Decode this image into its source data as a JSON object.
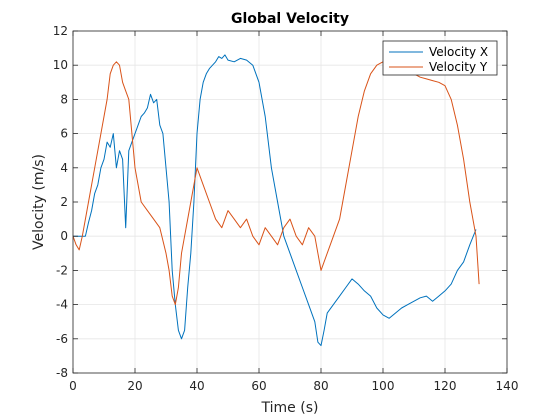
{
  "chart_data": {
    "type": "line",
    "title": "Global Velocity",
    "xlabel": "Time (s)",
    "ylabel": "Velocity (m/s)",
    "xlim": [
      0,
      140
    ],
    "ylim": [
      -8,
      12
    ],
    "xticks": [
      0,
      20,
      40,
      60,
      80,
      100,
      120,
      140
    ],
    "yticks": [
      -8,
      -6,
      -4,
      -2,
      0,
      2,
      4,
      6,
      8,
      10,
      12
    ],
    "grid": true,
    "legend_position": "top-right",
    "series": [
      {
        "name": "Velocity X",
        "color": "#0072BD",
        "x": [
          0,
          2,
          4,
          5,
          6,
          7,
          8,
          9,
          10,
          11,
          12,
          13,
          14,
          15,
          16,
          17,
          18,
          19,
          20,
          21,
          22,
          23,
          24,
          25,
          26,
          27,
          28,
          29,
          30,
          31,
          32,
          33,
          34,
          35,
          36,
          37,
          38,
          39,
          40,
          41,
          42,
          43,
          44,
          45,
          46,
          47,
          48,
          49,
          50,
          52,
          54,
          56,
          58,
          60,
          62,
          64,
          66,
          68,
          70,
          72,
          74,
          76,
          78,
          79,
          80,
          81,
          82,
          84,
          86,
          88,
          90,
          92,
          94,
          96,
          98,
          100,
          102,
          104,
          106,
          108,
          110,
          112,
          114,
          116,
          118,
          120,
          122,
          124,
          126,
          128,
          130
        ],
        "y": [
          0,
          0,
          0,
          0.8,
          1.5,
          2.5,
          3,
          4,
          4.5,
          5.5,
          5.2,
          6,
          4,
          5,
          4.5,
          0.5,
          5,
          5.5,
          6,
          6.5,
          7,
          7.2,
          7.5,
          8.3,
          7.8,
          8,
          6.5,
          6,
          4,
          2,
          -2,
          -4,
          -5.5,
          -6,
          -5.5,
          -3,
          -1,
          2,
          6,
          8,
          9,
          9.5,
          9.8,
          10,
          10.2,
          10.5,
          10.4,
          10.6,
          10.3,
          10.2,
          10.4,
          10.3,
          10,
          9,
          7,
          4,
          2,
          0,
          -1,
          -2,
          -3,
          -4,
          -5,
          -6.2,
          -6.4,
          -5.5,
          -4.5,
          -4,
          -3.5,
          -3,
          -2.5,
          -2.8,
          -3.2,
          -3.5,
          -4.2,
          -4.6,
          -4.8,
          -4.5,
          -4.2,
          -4,
          -3.8,
          -3.6,
          -3.5,
          -3.8,
          -3.5,
          -3.2,
          -2.8,
          -2,
          -1.5,
          -0.5,
          0.4
        ]
      },
      {
        "name": "Velocity Y",
        "color": "#D95319",
        "x": [
          0,
          1,
          2,
          3,
          4,
          5,
          6,
          7,
          8,
          9,
          10,
          11,
          12,
          13,
          14,
          15,
          16,
          17,
          18,
          19,
          20,
          21,
          22,
          24,
          26,
          28,
          30,
          31,
          32,
          33,
          34,
          35,
          36,
          37,
          38,
          40,
          42,
          44,
          46,
          48,
          50,
          52,
          54,
          56,
          58,
          60,
          62,
          64,
          66,
          68,
          70,
          72,
          74,
          76,
          78,
          79,
          80,
          82,
          84,
          86,
          88,
          90,
          92,
          94,
          96,
          98,
          100,
          102,
          104,
          106,
          108,
          110,
          112,
          114,
          116,
          118,
          120,
          122,
          124,
          126,
          128,
          130,
          131
        ],
        "y": [
          0,
          -0.5,
          -0.8,
          0,
          1,
          2,
          3,
          4,
          5,
          6,
          7,
          8,
          9.5,
          10,
          10.2,
          10,
          9,
          8.5,
          8,
          6,
          4,
          3,
          2,
          1.5,
          1,
          0.5,
          -1,
          -2,
          -3.5,
          -4,
          -3,
          -1,
          0,
          1,
          2,
          4,
          3,
          2,
          1,
          0.5,
          1.5,
          1,
          0.5,
          1,
          0,
          -0.5,
          0.5,
          0,
          -0.5,
          0.5,
          1,
          0,
          -0.5,
          0.5,
          0,
          -1,
          -2,
          -1,
          0,
          1,
          3,
          5,
          7,
          8.5,
          9.5,
          10,
          10.2,
          10.3,
          10,
          9.8,
          9.6,
          9.5,
          9.3,
          9.2,
          9.1,
          9,
          8.8,
          8,
          6.5,
          4.5,
          2,
          0,
          -2.8
        ]
      }
    ]
  }
}
